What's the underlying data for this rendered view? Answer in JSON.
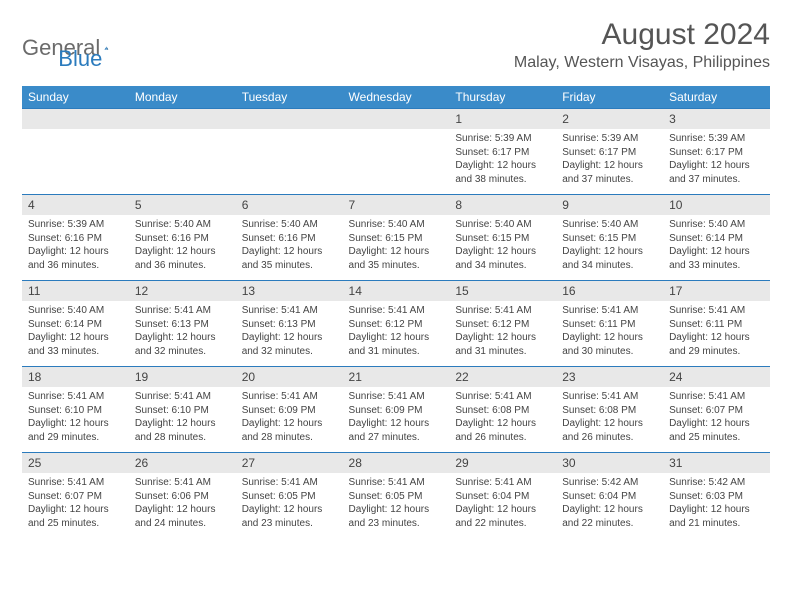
{
  "logo": {
    "text1": "General",
    "text2": "Blue"
  },
  "title": "August 2024",
  "location": "Malay, Western Visayas, Philippines",
  "colors": {
    "header_bg": "#3a8bc9",
    "header_text": "#ffffff",
    "daynum_bg": "#e8e8e8",
    "border_accent": "#2b7bbd",
    "text": "#444444",
    "logo_gray": "#6b6b6b",
    "logo_blue": "#2b7bbd"
  },
  "weekdays": [
    "Sunday",
    "Monday",
    "Tuesday",
    "Wednesday",
    "Thursday",
    "Friday",
    "Saturday"
  ],
  "weeks": [
    [
      null,
      null,
      null,
      null,
      {
        "n": "1",
        "sr": "5:39 AM",
        "ss": "6:17 PM",
        "dl": "12 hours and 38 minutes."
      },
      {
        "n": "2",
        "sr": "5:39 AM",
        "ss": "6:17 PM",
        "dl": "12 hours and 37 minutes."
      },
      {
        "n": "3",
        "sr": "5:39 AM",
        "ss": "6:17 PM",
        "dl": "12 hours and 37 minutes."
      }
    ],
    [
      {
        "n": "4",
        "sr": "5:39 AM",
        "ss": "6:16 PM",
        "dl": "12 hours and 36 minutes."
      },
      {
        "n": "5",
        "sr": "5:40 AM",
        "ss": "6:16 PM",
        "dl": "12 hours and 36 minutes."
      },
      {
        "n": "6",
        "sr": "5:40 AM",
        "ss": "6:16 PM",
        "dl": "12 hours and 35 minutes."
      },
      {
        "n": "7",
        "sr": "5:40 AM",
        "ss": "6:15 PM",
        "dl": "12 hours and 35 minutes."
      },
      {
        "n": "8",
        "sr": "5:40 AM",
        "ss": "6:15 PM",
        "dl": "12 hours and 34 minutes."
      },
      {
        "n": "9",
        "sr": "5:40 AM",
        "ss": "6:15 PM",
        "dl": "12 hours and 34 minutes."
      },
      {
        "n": "10",
        "sr": "5:40 AM",
        "ss": "6:14 PM",
        "dl": "12 hours and 33 minutes."
      }
    ],
    [
      {
        "n": "11",
        "sr": "5:40 AM",
        "ss": "6:14 PM",
        "dl": "12 hours and 33 minutes."
      },
      {
        "n": "12",
        "sr": "5:41 AM",
        "ss": "6:13 PM",
        "dl": "12 hours and 32 minutes."
      },
      {
        "n": "13",
        "sr": "5:41 AM",
        "ss": "6:13 PM",
        "dl": "12 hours and 32 minutes."
      },
      {
        "n": "14",
        "sr": "5:41 AM",
        "ss": "6:12 PM",
        "dl": "12 hours and 31 minutes."
      },
      {
        "n": "15",
        "sr": "5:41 AM",
        "ss": "6:12 PM",
        "dl": "12 hours and 31 minutes."
      },
      {
        "n": "16",
        "sr": "5:41 AM",
        "ss": "6:11 PM",
        "dl": "12 hours and 30 minutes."
      },
      {
        "n": "17",
        "sr": "5:41 AM",
        "ss": "6:11 PM",
        "dl": "12 hours and 29 minutes."
      }
    ],
    [
      {
        "n": "18",
        "sr": "5:41 AM",
        "ss": "6:10 PM",
        "dl": "12 hours and 29 minutes."
      },
      {
        "n": "19",
        "sr": "5:41 AM",
        "ss": "6:10 PM",
        "dl": "12 hours and 28 minutes."
      },
      {
        "n": "20",
        "sr": "5:41 AM",
        "ss": "6:09 PM",
        "dl": "12 hours and 28 minutes."
      },
      {
        "n": "21",
        "sr": "5:41 AM",
        "ss": "6:09 PM",
        "dl": "12 hours and 27 minutes."
      },
      {
        "n": "22",
        "sr": "5:41 AM",
        "ss": "6:08 PM",
        "dl": "12 hours and 26 minutes."
      },
      {
        "n": "23",
        "sr": "5:41 AM",
        "ss": "6:08 PM",
        "dl": "12 hours and 26 minutes."
      },
      {
        "n": "24",
        "sr": "5:41 AM",
        "ss": "6:07 PM",
        "dl": "12 hours and 25 minutes."
      }
    ],
    [
      {
        "n": "25",
        "sr": "5:41 AM",
        "ss": "6:07 PM",
        "dl": "12 hours and 25 minutes."
      },
      {
        "n": "26",
        "sr": "5:41 AM",
        "ss": "6:06 PM",
        "dl": "12 hours and 24 minutes."
      },
      {
        "n": "27",
        "sr": "5:41 AM",
        "ss": "6:05 PM",
        "dl": "12 hours and 23 minutes."
      },
      {
        "n": "28",
        "sr": "5:41 AM",
        "ss": "6:05 PM",
        "dl": "12 hours and 23 minutes."
      },
      {
        "n": "29",
        "sr": "5:41 AM",
        "ss": "6:04 PM",
        "dl": "12 hours and 22 minutes."
      },
      {
        "n": "30",
        "sr": "5:42 AM",
        "ss": "6:04 PM",
        "dl": "12 hours and 22 minutes."
      },
      {
        "n": "31",
        "sr": "5:42 AM",
        "ss": "6:03 PM",
        "dl": "12 hours and 21 minutes."
      }
    ]
  ],
  "labels": {
    "sunrise": "Sunrise: ",
    "sunset": "Sunset: ",
    "daylight": "Daylight: "
  }
}
